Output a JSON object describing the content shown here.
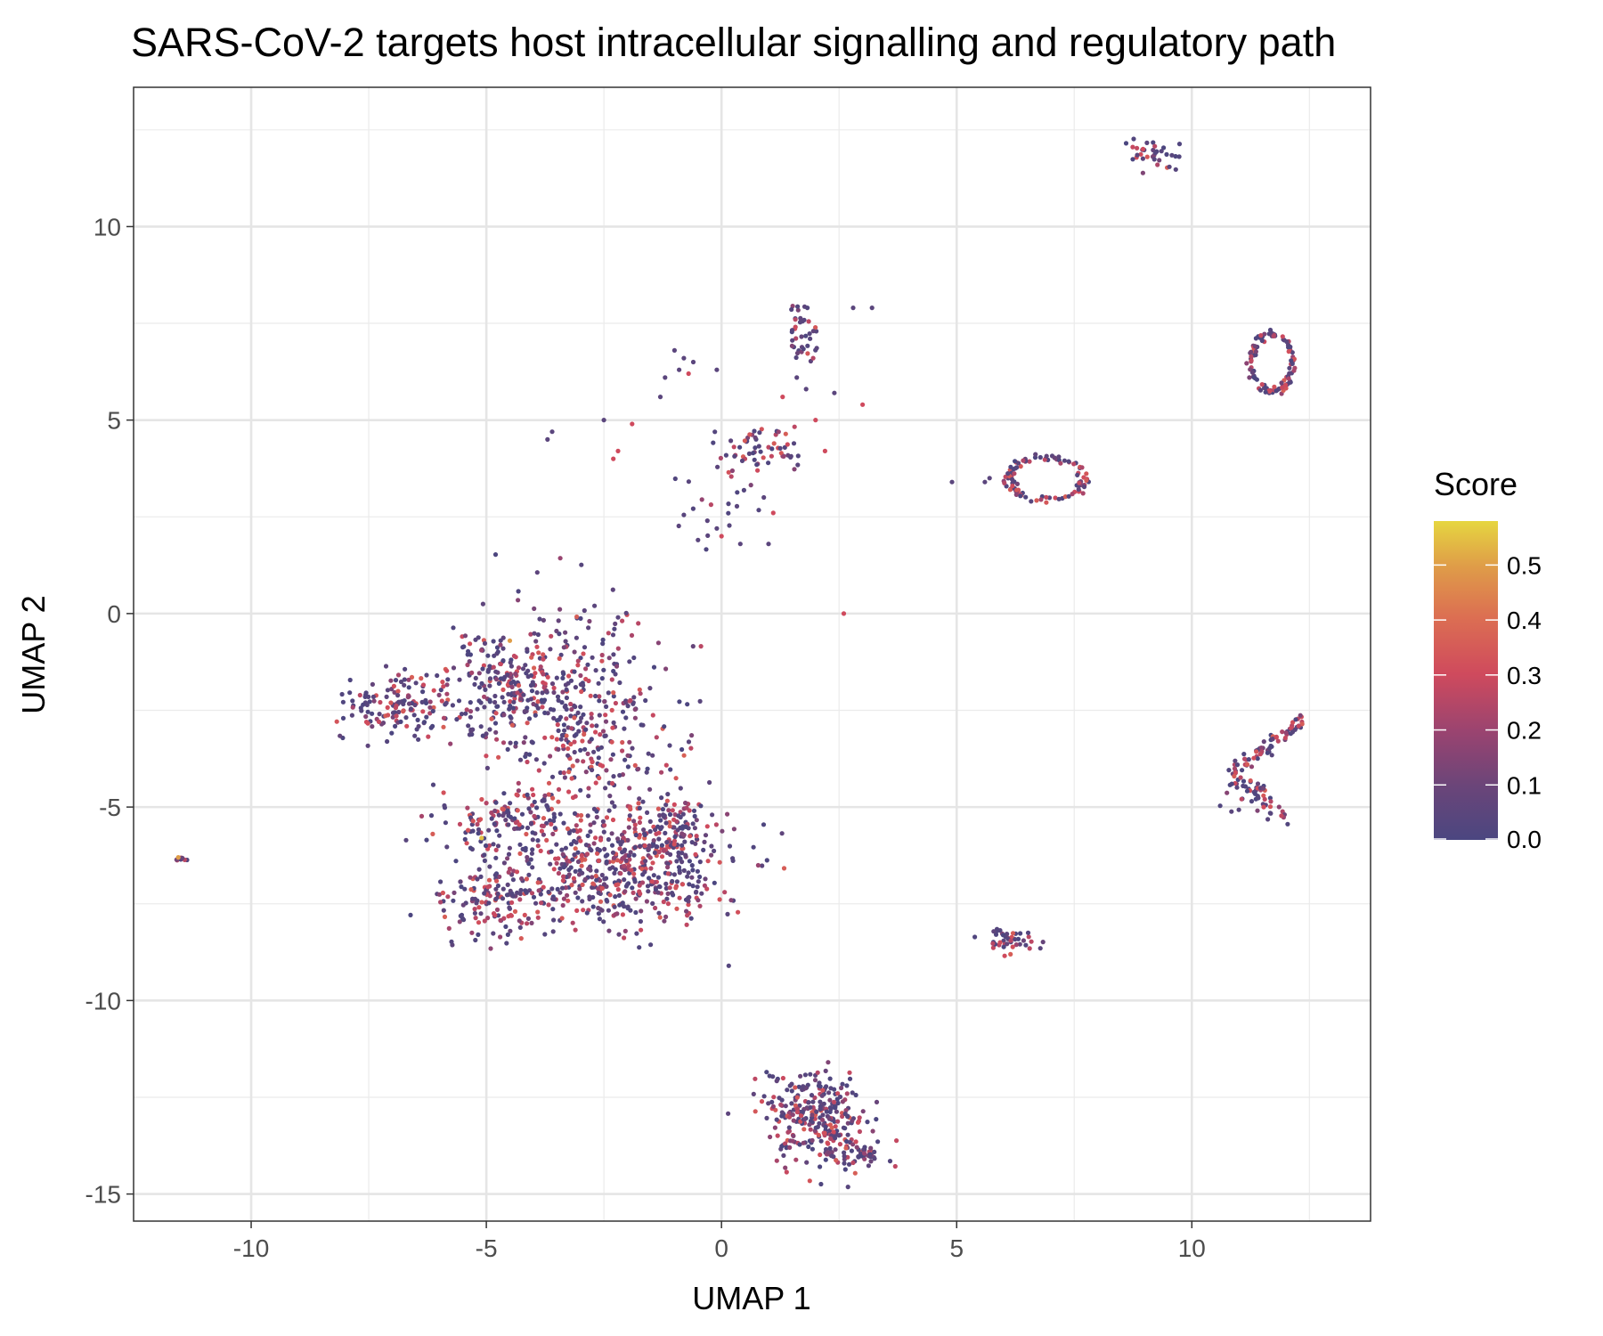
{
  "chart_data": {
    "type": "scatter",
    "title": "SARS-CoV-2 targets host intracellular signalling and regulatory path",
    "xlabel": "UMAP 1",
    "ylabel": "UMAP 2",
    "xlim": [
      -12.5,
      13.8
    ],
    "ylim": [
      -15.7,
      13.6
    ],
    "x_ticks": [
      -10,
      -5,
      0,
      5,
      10
    ],
    "x_tick_labels": [
      "-10",
      "-5",
      "0",
      "5",
      "10"
    ],
    "y_ticks": [
      -15,
      -10,
      -5,
      0,
      5,
      10
    ],
    "y_tick_labels": [
      "-15",
      "-10",
      "-5",
      "0",
      "5",
      "10"
    ],
    "grid": true,
    "legend": {
      "title": "Score",
      "placement": "right",
      "range": [
        0.0,
        0.58
      ],
      "ticks": [
        0.0,
        0.1,
        0.2,
        0.3,
        0.4,
        0.5
      ],
      "tick_labels": [
        "0.0",
        "0.1",
        "0.2",
        "0.3",
        "0.4",
        "0.5"
      ],
      "colors": [
        "#4b4680",
        "#7a4479",
        "#b0446a",
        "#d7505a",
        "#e0864a",
        "#e4c53e"
      ]
    },
    "clusters": [
      {
        "cx": -3.2,
        "cy": -2.6,
        "sx": 1.0,
        "sy": 1.3,
        "n": 420,
        "red": 0.3
      },
      {
        "cx": -4.6,
        "cy": -1.7,
        "sx": 0.7,
        "sy": 0.8,
        "n": 160,
        "red": 0.2
      },
      {
        "cx": -6.9,
        "cy": -2.4,
        "sx": 0.6,
        "sy": 0.4,
        "n": 140,
        "red": 0.25
      },
      {
        "cx": -2.0,
        "cy": -6.6,
        "sx": 1.1,
        "sy": 0.75,
        "n": 520,
        "red": 0.35
      },
      {
        "cx": -4.8,
        "cy": -7.3,
        "sx": 0.6,
        "sy": 0.55,
        "n": 160,
        "red": 0.3
      },
      {
        "cx": -4.5,
        "cy": -5.3,
        "sx": 0.8,
        "sy": 0.45,
        "n": 140,
        "red": 0.3
      },
      {
        "cx": -1.0,
        "cy": -5.3,
        "sx": 0.5,
        "sy": 0.35,
        "n": 70,
        "red": 0.3
      },
      {
        "cx": 2.0,
        "cy": -13.0,
        "sx": 0.55,
        "sy": 0.6,
        "n": 300,
        "red": 0.25
      },
      {
        "cx": 3.0,
        "cy": -14.0,
        "sx": 0.3,
        "sy": 0.15,
        "n": 40,
        "red": 0.2
      },
      {
        "cx": 0.8,
        "cy": 4.3,
        "sx": 0.45,
        "sy": 0.4,
        "n": 60,
        "red": 0.3
      },
      {
        "cx": 0.0,
        "cy": 2.8,
        "sx": 0.5,
        "sy": 0.7,
        "n": 20,
        "red": 0.1
      },
      {
        "cx": 1.7,
        "cy": 7.3,
        "sx": 0.15,
        "sy": 0.5,
        "n": 40,
        "red": 0.25
      },
      {
        "cx": 9.2,
        "cy": 11.9,
        "sx": 0.4,
        "sy": 0.2,
        "n": 35,
        "red": 0.3
      },
      {
        "cx": 6.1,
        "cy": -8.45,
        "sx": 0.22,
        "sy": 0.14,
        "n": 45,
        "red": 0.3
      },
      {
        "cx": 11.2,
        "cy": -4.4,
        "sx": 0.25,
        "sy": 0.35,
        "n": 45,
        "red": 0.3
      },
      {
        "cx": -11.5,
        "cy": -6.35,
        "sx": 0.05,
        "sy": 0.05,
        "n": 8,
        "red": 0.3
      }
    ],
    "rings": [
      {
        "cx": 11.7,
        "cy": 6.5,
        "rx": 0.45,
        "ry": 0.75,
        "n": 110,
        "red": 0.45
      },
      {
        "cx": 6.9,
        "cy": 3.5,
        "rx": 0.8,
        "ry": 0.55,
        "n": 100,
        "red": 0.4
      }
    ],
    "lines": [
      {
        "x1": 11.0,
        "y1": -4.0,
        "x2": 12.4,
        "y2": -2.7,
        "n": 60,
        "red": 0.3
      },
      {
        "x1": 11.4,
        "y1": -4.6,
        "x2": 12.0,
        "y2": -5.5,
        "n": 20,
        "red": 0.3
      }
    ],
    "points": [
      {
        "x": 2.6,
        "y": 0.0,
        "score": 0.3
      },
      {
        "x": 3.2,
        "y": 7.9,
        "score": 0.05
      },
      {
        "x": 3.0,
        "y": 5.4,
        "score": 0.3
      },
      {
        "x": 2.4,
        "y": 5.7,
        "score": 0.05
      },
      {
        "x": 2.8,
        "y": 7.9,
        "score": 0.05
      },
      {
        "x": 4.9,
        "y": 3.4,
        "score": 0.05
      },
      {
        "x": 5.7,
        "y": 3.5,
        "score": 0.05
      },
      {
        "x": 5.6,
        "y": 3.4,
        "score": 0.05
      },
      {
        "x": -3.7,
        "y": 4.5,
        "score": 0.05
      },
      {
        "x": -3.6,
        "y": 4.7,
        "score": 0.05
      },
      {
        "x": -2.5,
        "y": 5.0,
        "score": 0.05
      },
      {
        "x": -2.2,
        "y": 4.2,
        "score": 0.3
      },
      {
        "x": -2.3,
        "y": 4.0,
        "score": 0.3
      },
      {
        "x": -1.9,
        "y": 4.9,
        "score": 0.3
      },
      {
        "x": -1.0,
        "y": 6.8,
        "score": 0.05
      },
      {
        "x": -0.8,
        "y": 6.6,
        "score": 0.05
      },
      {
        "x": -0.6,
        "y": 6.5,
        "score": 0.05
      },
      {
        "x": -0.9,
        "y": 6.3,
        "score": 0.05
      },
      {
        "x": -1.2,
        "y": 6.1,
        "score": 0.05
      },
      {
        "x": -1.3,
        "y": 5.6,
        "score": 0.05
      },
      {
        "x": -0.1,
        "y": 6.3,
        "score": 0.05
      },
      {
        "x": -0.7,
        "y": 6.2,
        "score": 0.3
      },
      {
        "x": -0.5,
        "y": 1.9,
        "score": 0.05
      },
      {
        "x": -0.1,
        "y": 2.2,
        "score": 0.05
      },
      {
        "x": 0.0,
        "y": 2.0,
        "score": 0.3
      },
      {
        "x": 0.4,
        "y": 1.8,
        "score": 0.05
      },
      {
        "x": 1.0,
        "y": 1.8,
        "score": 0.05
      },
      {
        "x": -0.3,
        "y": 2.4,
        "score": 0.05
      },
      {
        "x": 1.6,
        "y": 6.1,
        "score": 0.05
      },
      {
        "x": 1.8,
        "y": 5.8,
        "score": 0.05
      },
      {
        "x": 1.3,
        "y": 5.6,
        "score": 0.3
      },
      {
        "x": 2.2,
        "y": 4.2,
        "score": 0.3
      },
      {
        "x": 2.0,
        "y": 5.0,
        "score": 0.3
      },
      {
        "x": 1.1,
        "y": 2.6,
        "score": 0.3
      },
      {
        "x": 0.9,
        "y": 3.0,
        "score": 0.05
      },
      {
        "x": -4.5,
        "y": -0.7,
        "score": 0.5
      },
      {
        "x": -5.1,
        "y": -5.8,
        "score": 0.55
      },
      {
        "x": -11.55,
        "y": -6.3,
        "score": 0.5
      },
      {
        "x": -0.3,
        "y": -5.5,
        "score": 0.3
      },
      {
        "x": -0.2,
        "y": -5.2,
        "score": 0.05
      },
      {
        "x": -2.2,
        "y": -0.1,
        "score": 0.05
      },
      {
        "x": -2.7,
        "y": 0.2,
        "score": 0.05
      }
    ]
  }
}
